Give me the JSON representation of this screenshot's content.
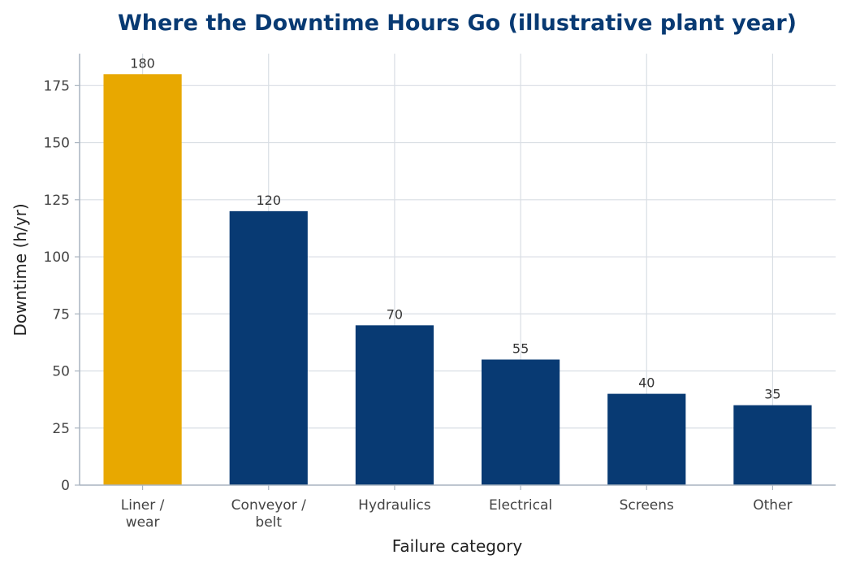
{
  "chart_data": {
    "type": "bar",
    "title": "Where the Downtime Hours Go (illustrative plant year)",
    "xlabel": "Failure category",
    "ylabel": "Downtime (h/yr)",
    "categories": [
      [
        "Liner /",
        "wear"
      ],
      [
        "Conveyor /",
        "belt"
      ],
      [
        "Hydraulics"
      ],
      [
        "Electrical"
      ],
      [
        "Screens"
      ],
      [
        "Other"
      ]
    ],
    "values": [
      180,
      120,
      70,
      55,
      40,
      35
    ],
    "highlight_index": 0,
    "ylim": [
      0,
      189
    ],
    "yticks": [
      0,
      25,
      50,
      75,
      100,
      125,
      150,
      175
    ],
    "grid": true,
    "legend": "none",
    "colors": {
      "highlight": "#E8A800",
      "bar": "#083A73",
      "title": "#083A73",
      "grid": "#D9DEE4",
      "axis": "#A9B4C0"
    }
  }
}
